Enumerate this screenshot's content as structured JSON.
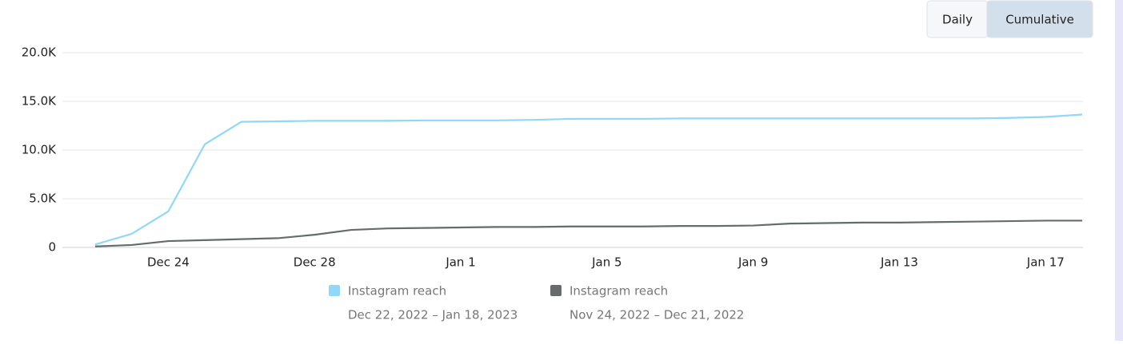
{
  "toggle": {
    "options": [
      "Daily",
      "Cumulative"
    ],
    "active": 1
  },
  "chart_data": {
    "type": "line",
    "categories": [
      null,
      null,
      "Dec 24",
      null,
      null,
      null,
      "Dec 28",
      null,
      null,
      null,
      "Jan 1",
      null,
      null,
      null,
      "Jan 5",
      null,
      null,
      null,
      "Jan 9",
      null,
      null,
      null,
      "Jan 13",
      null,
      null,
      null,
      "Jan 17",
      null
    ],
    "series": [
      {
        "name": "Instagram reach",
        "period": "Dec 22, 2022 – Jan 18, 2023",
        "color": "#8fd8f8",
        "values": [
          300,
          1400,
          3700,
          10600,
          12900,
          12950,
          13000,
          13000,
          13000,
          13050,
          13050,
          13050,
          13100,
          13200,
          13200,
          13200,
          13250,
          13250,
          13250,
          13250,
          13250,
          13250,
          13250,
          13250,
          13250,
          13300,
          13400,
          13650
        ]
      },
      {
        "name": "Instagram reach",
        "period": "Nov 24, 2022 – Dec 21, 2022",
        "color": "#666b6b",
        "values": [
          100,
          250,
          650,
          750,
          850,
          950,
          1300,
          1800,
          1950,
          2000,
          2050,
          2100,
          2100,
          2150,
          2150,
          2150,
          2200,
          2200,
          2250,
          2450,
          2500,
          2550,
          2550,
          2600,
          2650,
          2700,
          2750,
          2750
        ]
      }
    ],
    "ylim": [
      0,
      20000
    ],
    "yticks": [
      0,
      {
        "value": 5000,
        "label": "5.0K"
      },
      {
        "value": 10000,
        "label": "10.0K"
      },
      {
        "value": 15000,
        "label": "15.0K"
      },
      {
        "value": 20000,
        "label": "20.0K"
      }
    ],
    "grid": true
  }
}
